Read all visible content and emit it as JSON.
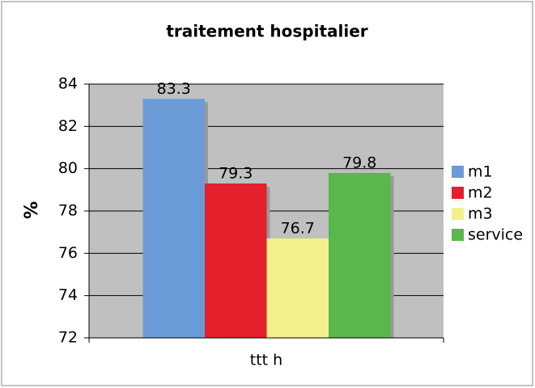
{
  "chart_data": {
    "type": "bar",
    "title": "traitement hospitalier",
    "ylabel": "%",
    "categories": [
      "ttt h"
    ],
    "series": [
      {
        "name": "m1",
        "color": "#6b9bd6",
        "values": [
          83.3
        ]
      },
      {
        "name": "m2",
        "color": "#e3202b",
        "values": [
          79.3
        ]
      },
      {
        "name": "m3",
        "color": "#f2f08c",
        "values": [
          76.7
        ]
      },
      {
        "name": "service",
        "color": "#58b84c",
        "values": [
          79.8
        ]
      }
    ],
    "ylim": [
      72,
      84
    ],
    "yticks": [
      72,
      74,
      76,
      78,
      80,
      82,
      84
    ],
    "grid": true,
    "legend": "right"
  }
}
